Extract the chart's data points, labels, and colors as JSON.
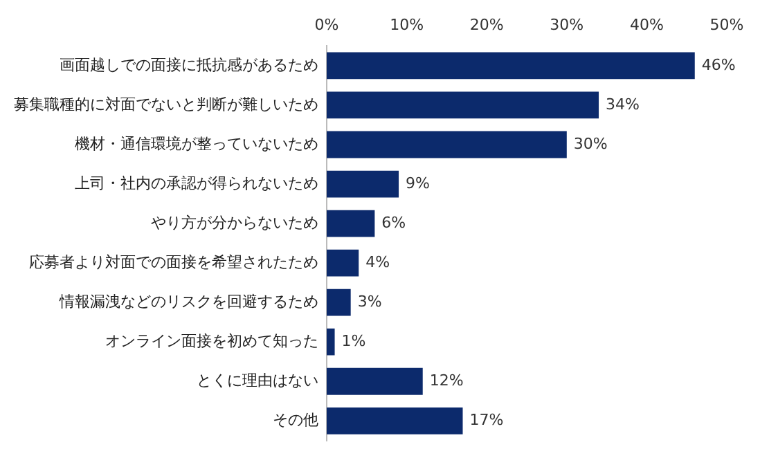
{
  "chart_data": {
    "type": "bar",
    "orientation": "horizontal",
    "categories": [
      "画面越しでの面接に抵抗感があるため",
      "募集職種的に対面でないと判断が難しいため",
      "機材・通信環境が整っていないため",
      "上司・社内の承認が得られないため",
      "やり方が分からないため",
      "応募者より対面での面接を希望されたため",
      "情報漏洩などのリスクを回避するため",
      "オンライン面接を初めて知った",
      "とくに理由はない",
      "その他"
    ],
    "values": [
      46,
      34,
      30,
      9,
      6,
      4,
      3,
      1,
      12,
      17
    ],
    "value_labels": [
      "46%",
      "34%",
      "30%",
      "9%",
      "6%",
      "4%",
      "3%",
      "1%",
      "12%",
      "17%"
    ],
    "color": "#0c2a6c",
    "xlim": [
      0,
      50
    ],
    "xticks": [
      {
        "value": 0,
        "label": "0%"
      },
      {
        "value": 10,
        "label": "10%"
      },
      {
        "value": 20,
        "label": "20%"
      },
      {
        "value": 30,
        "label": "30%"
      },
      {
        "value": 40,
        "label": "40%"
      },
      {
        "value": 50,
        "label": "50%"
      }
    ],
    "grid": false,
    "legend": false
  }
}
